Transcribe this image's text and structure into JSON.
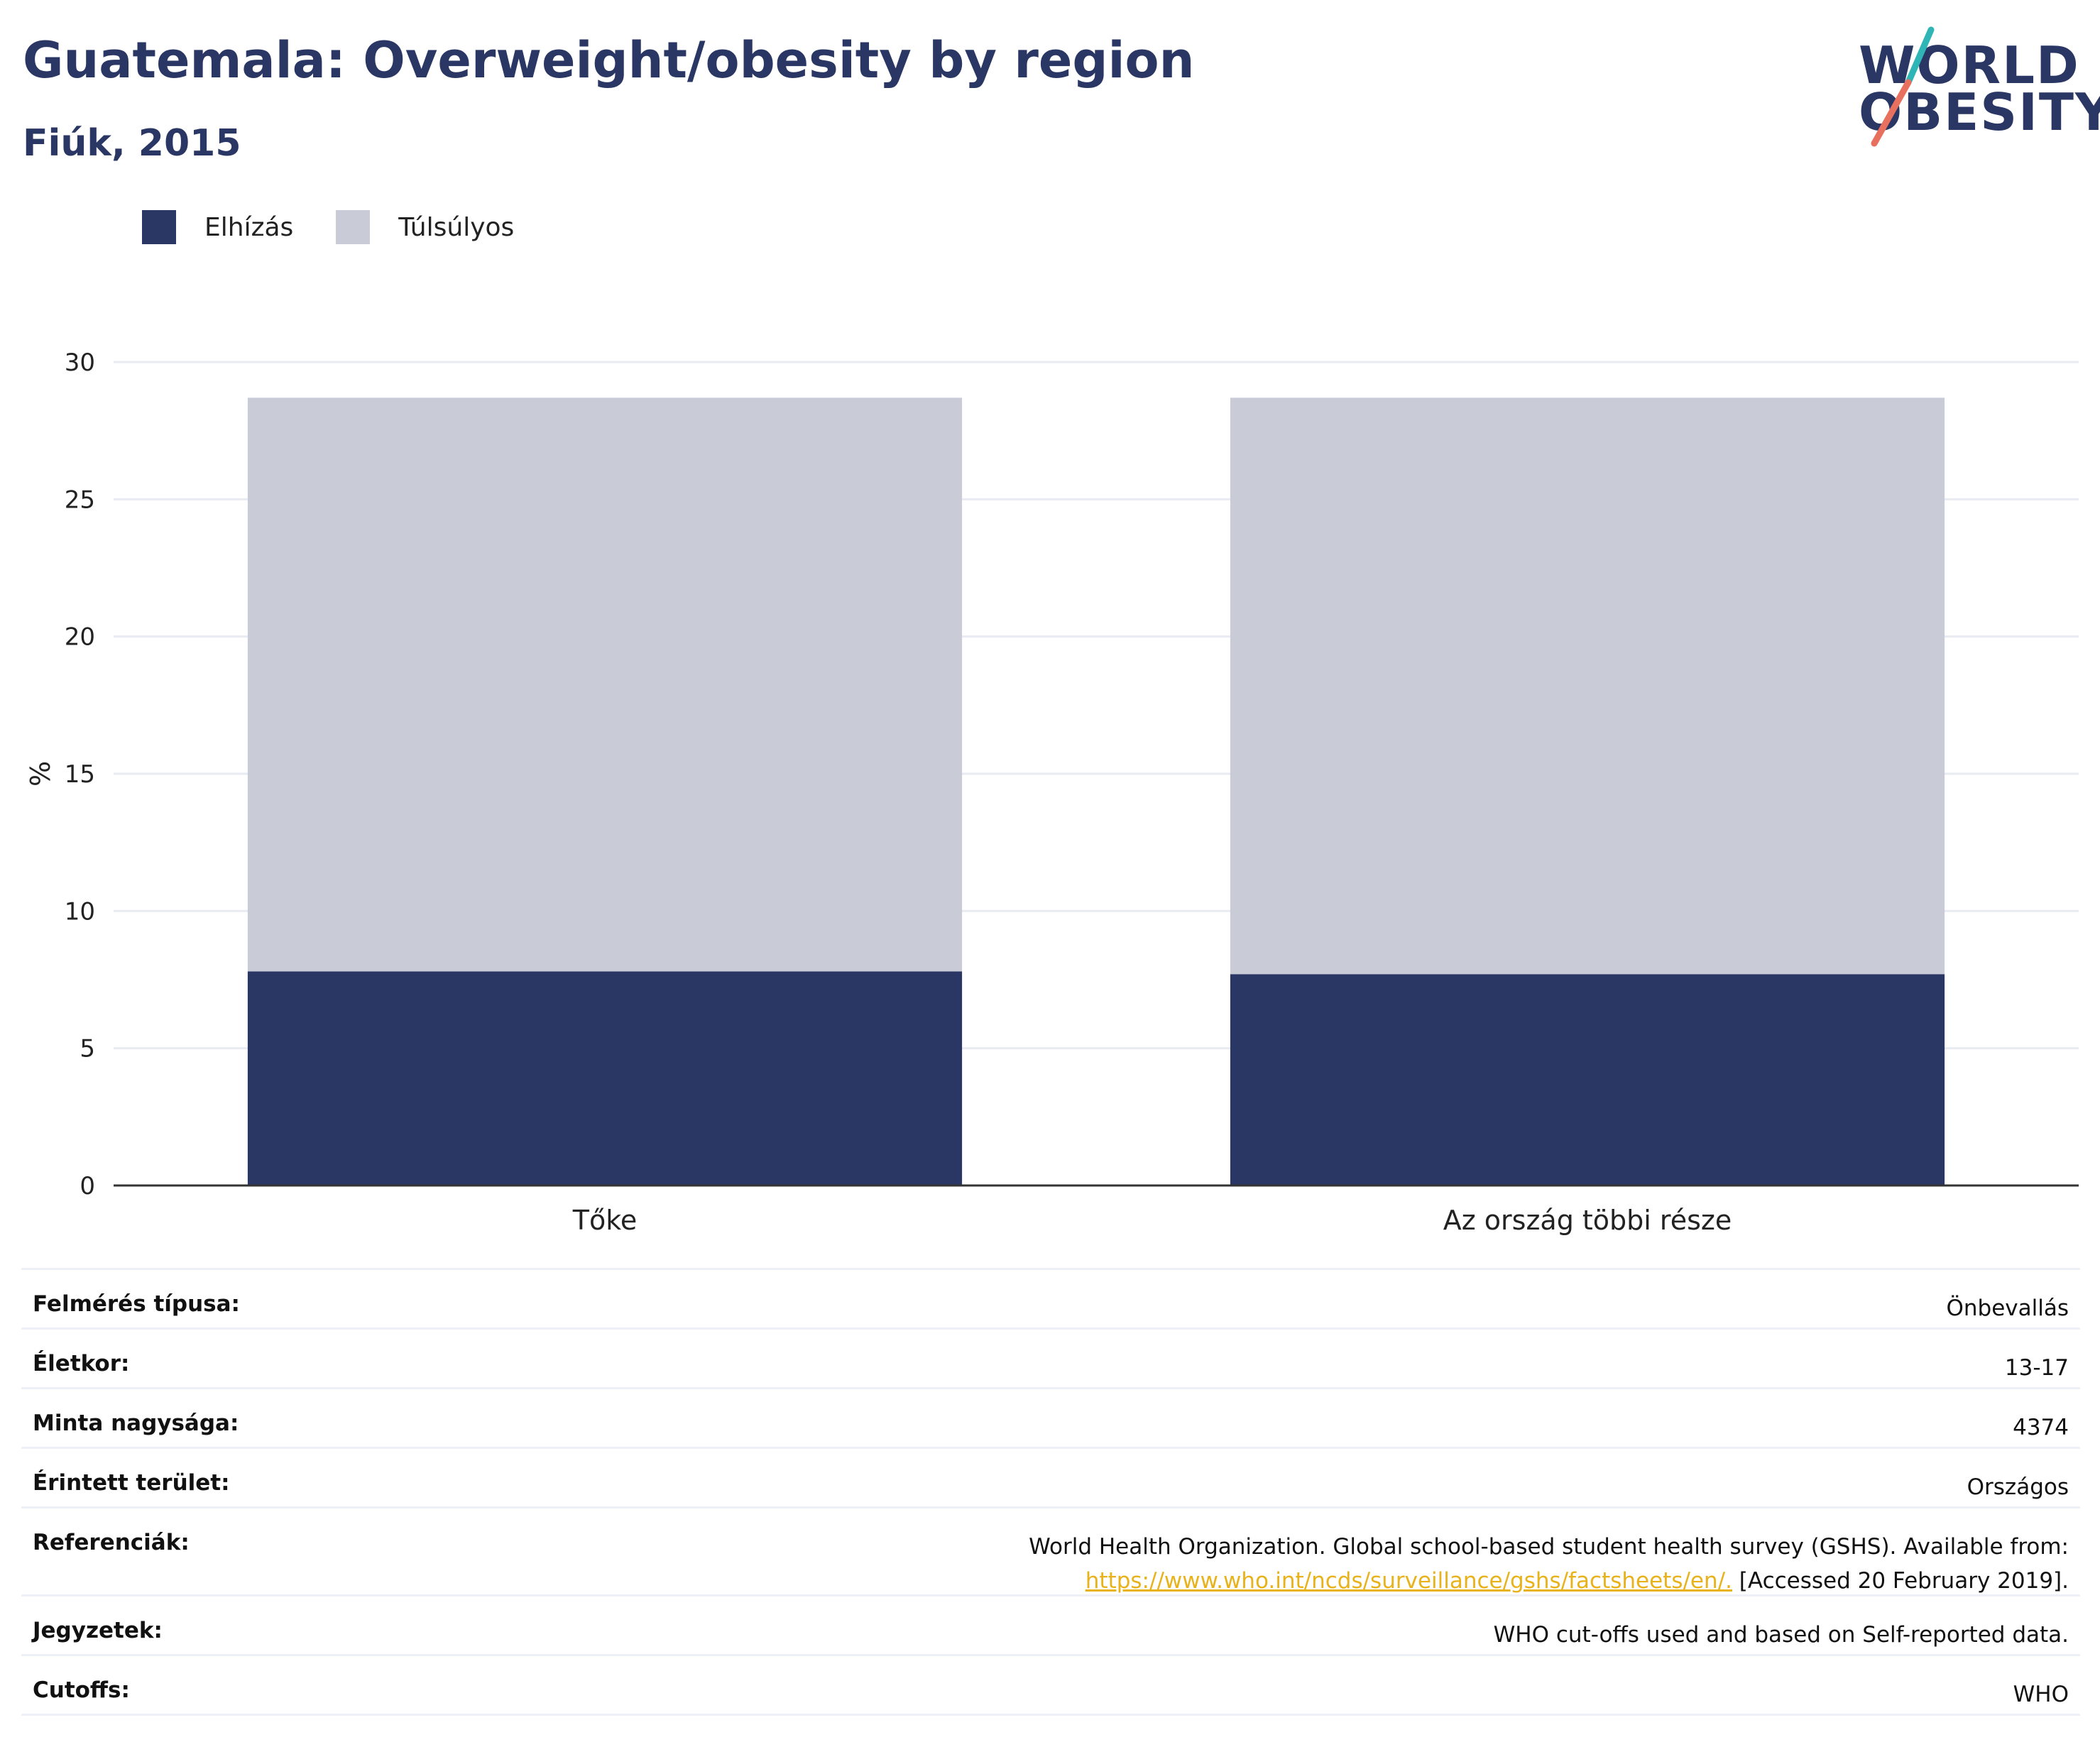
{
  "header": {
    "title": "Guatemala: Overweight/obesity by region",
    "subtitle": "Fiúk, 2015"
  },
  "logo": {
    "line1": "WORLD",
    "line2": "OBESITY"
  },
  "colors": {
    "obesity": "#2a3663",
    "overweight": "#c9ccd7",
    "accent": "#2a3663",
    "link": "#e8b21b"
  },
  "chart_data": {
    "type": "bar",
    "stacked": true,
    "categories": [
      "Tőke",
      "Az ország többi része"
    ],
    "series": [
      {
        "name": "Elhízás",
        "values": [
          7.8,
          7.7
        ]
      },
      {
        "name": "Túlsúlyos",
        "values": [
          20.9,
          21.0
        ]
      }
    ],
    "ylabel": "%",
    "ylim": [
      0,
      30
    ],
    "yticks": [
      0,
      5,
      10,
      15,
      20,
      25,
      30
    ],
    "grid": true,
    "legend": "top-left"
  },
  "meta": [
    {
      "key": "Felmérés típusa:",
      "value": "Önbevallás"
    },
    {
      "key": "Életkor:",
      "value": "13-17"
    },
    {
      "key": "Minta nagysága:",
      "value": "4374"
    },
    {
      "key": "Érintett terület:",
      "value": "Országos"
    },
    {
      "key": "Referenciák:",
      "value": "World Health Organization. Global school-based student health survey (GSHS). Available from:",
      "link": "https://www.who.int/ncds/surveillance/gshs/factsheets/en/.",
      "suffix": " [Accessed 20 February 2019]."
    },
    {
      "key": "Jegyzetek:",
      "value": "WHO cut-offs used and based on Self-reported data."
    },
    {
      "key": "Cutoffs:",
      "value": "WHO"
    }
  ]
}
